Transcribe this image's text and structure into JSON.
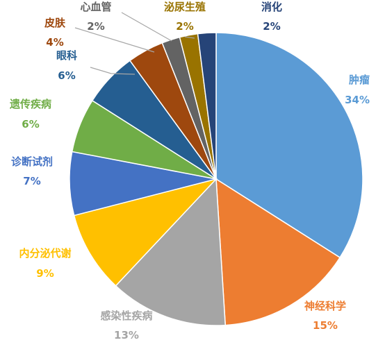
{
  "chart_data": {
    "type": "pie",
    "title": "",
    "legend": "none",
    "slices": [
      {
        "label": "肿瘤",
        "value": 34,
        "pct_text": "34%",
        "color": "#5b9bd5",
        "text_color": "#5b9bd5"
      },
      {
        "label": "神经科学",
        "value": 15,
        "pct_text": "15%",
        "color": "#ed7d31",
        "text_color": "#ed7d31"
      },
      {
        "label": "感染性疾病",
        "value": 13,
        "pct_text": "13%",
        "color": "#a5a5a5",
        "text_color": "#a5a5a5"
      },
      {
        "label": "内分泌代谢",
        "value": 9,
        "pct_text": "9%",
        "color": "#ffc000",
        "text_color": "#ffc000"
      },
      {
        "label": "诊断试剂",
        "value": 7,
        "pct_text": "7%",
        "color": "#4472c4",
        "text_color": "#4472c4"
      },
      {
        "label": "遗传疾病",
        "value": 6,
        "pct_text": "6%",
        "color": "#70ad47",
        "text_color": "#70ad47"
      },
      {
        "label": "眼科",
        "value": 6,
        "pct_text": "6%",
        "color": "#255e91",
        "text_color": "#255e91"
      },
      {
        "label": "皮肤",
        "value": 4,
        "pct_text": "4%",
        "color": "#9e480e",
        "text_color": "#9e480e"
      },
      {
        "label": "心血管",
        "value": 2,
        "pct_text": "2%",
        "color": "#636363",
        "text_color": "#636363"
      },
      {
        "label": "泌尿生殖",
        "value": 2,
        "pct_text": "2%",
        "color": "#997300",
        "text_color": "#997300"
      },
      {
        "label": "消化",
        "value": 2,
        "pct_text": "2%",
        "color": "#264478",
        "text_color": "#264478"
      }
    ]
  }
}
